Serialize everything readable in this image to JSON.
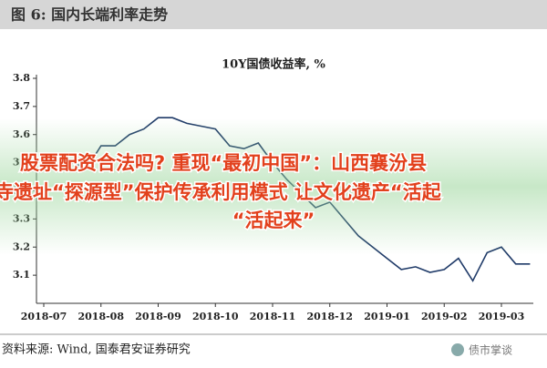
{
  "header": {
    "title": "图 6:  国内长端利率走势"
  },
  "chart_data": {
    "type": "line",
    "title": "10Y国债收益率, %",
    "categories": [
      "2018-07",
      null,
      null,
      null,
      "2018-08",
      null,
      null,
      null,
      "2018-09",
      null,
      null,
      null,
      "2018-10",
      null,
      null,
      null,
      "2018-11",
      null,
      null,
      null,
      "2018-12",
      null,
      null,
      null,
      "2019-01",
      null,
      null,
      null,
      "2019-02",
      null,
      null,
      null,
      "2019-03",
      null,
      null
    ],
    "series": [
      {
        "name": "10Y国债收益率",
        "color": "#1f3a68",
        "values": [
          null,
          3.48,
          3.5,
          3.48,
          3.56,
          3.56,
          3.6,
          3.62,
          3.66,
          3.66,
          3.64,
          3.63,
          3.62,
          3.56,
          3.55,
          3.57,
          3.5,
          3.44,
          3.39,
          3.34,
          3.36,
          3.3,
          3.24,
          3.2,
          3.16,
          3.12,
          3.13,
          3.11,
          3.12,
          3.16,
          3.08,
          3.18,
          3.2,
          3.14,
          3.14
        ]
      }
    ],
    "ylim": [
      3.0,
      3.8
    ],
    "yticks": [
      {
        "value": 3.1,
        "label": "3.1"
      },
      {
        "value": 3.2,
        "label": "3.2"
      },
      {
        "value": 3.3,
        "label": "3.3"
      },
      {
        "value": 3.4,
        "label": "3.4"
      },
      {
        "value": 3.5,
        "label": "3.5"
      },
      {
        "value": 3.6,
        "label": "3.6"
      },
      {
        "value": 3.7,
        "label": "3.7"
      },
      {
        "value": 3.8,
        "label": "3.8"
      }
    ],
    "grid": false
  },
  "overlay": {
    "lines": [
      "股票配资合法吗? 重现“最初中国”：山西襄汾县",
      "寺遗址“探源型”保护传承利用模式 让文化遗产“活起",
      "“活起来”"
    ]
  },
  "source": "资料来源:  Wind,  国泰君安证券研究",
  "watermark": "债市掌谈"
}
